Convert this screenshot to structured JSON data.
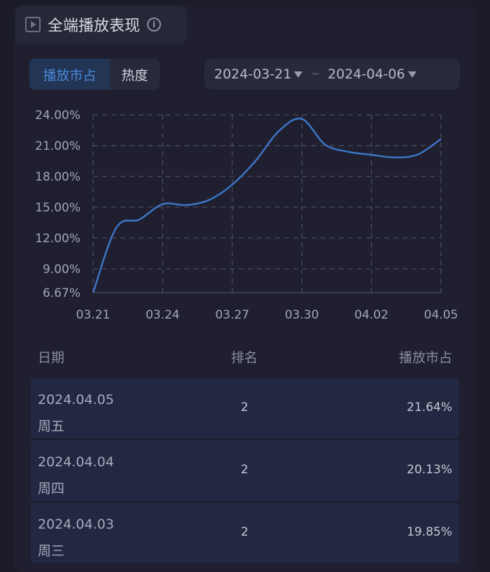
{
  "header": {
    "title": "全端播放表现",
    "icons": [
      "play-icon",
      "info-icon"
    ]
  },
  "tabs": [
    {
      "label": "播放市占",
      "active": true
    },
    {
      "label": "热度",
      "active": false
    }
  ],
  "date_range": {
    "start": "2024-03-21",
    "separator": "~",
    "end": "2024-04-06"
  },
  "chart_data": {
    "type": "line",
    "x": [
      "03.21",
      "03.22",
      "03.23",
      "03.24",
      "03.25",
      "03.26",
      "03.27",
      "03.28",
      "03.29",
      "03.30",
      "03.31",
      "04.01",
      "04.02",
      "04.03",
      "04.04",
      "04.05"
    ],
    "values": [
      6.67,
      13.0,
      13.8,
      15.3,
      15.2,
      15.7,
      17.2,
      19.5,
      22.4,
      23.6,
      21.1,
      20.4,
      20.1,
      19.85,
      20.13,
      21.64
    ],
    "x_tick_labels": [
      "03.21",
      "03.24",
      "03.27",
      "03.30",
      "04.02",
      "04.05"
    ],
    "y_tick_labels": [
      "24.00%",
      "21.00%",
      "18.00%",
      "15.00%",
      "12.00%",
      "9.00%",
      "6.67%"
    ],
    "ylim": [
      6.67,
      24
    ],
    "grid": true,
    "color": "#3d74c4"
  },
  "table": {
    "headers": [
      "日期",
      "排名",
      "播放市占"
    ],
    "rows": [
      {
        "date": "2024.04.05",
        "weekday": "周五",
        "rank": "2",
        "share": "21.64%"
      },
      {
        "date": "2024.04.04",
        "weekday": "周四",
        "rank": "2",
        "share": "20.13%"
      },
      {
        "date": "2024.04.03",
        "weekday": "周三",
        "rank": "2",
        "share": "19.85%"
      }
    ]
  }
}
